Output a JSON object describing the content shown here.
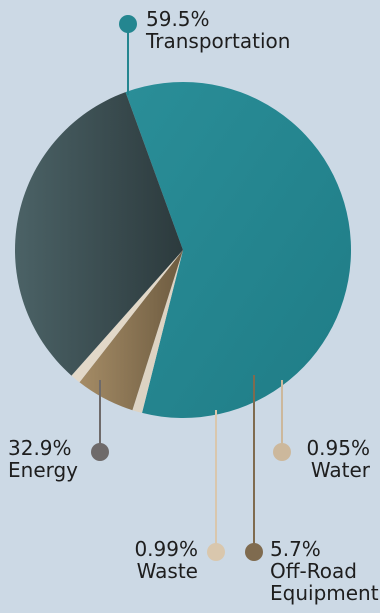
{
  "chart_data": {
    "type": "pie",
    "title": "",
    "slices": [
      {
        "label": "Transportation",
        "value": 59.5,
        "value_label": "59.5%",
        "color": "#248690"
      },
      {
        "label": "Water",
        "value": 0.95,
        "value_label": "0.95%",
        "color": "#ddd3c3"
      },
      {
        "label": "Off-Road Equipment",
        "value": 5.7,
        "value_label": "5.7%",
        "color": "#8a7553"
      },
      {
        "label": "Waste",
        "value": 0.99,
        "value_label": "0.99%",
        "color": "#e2d8c8"
      },
      {
        "label": "Energy",
        "value": 32.9,
        "value_label": "32.9%",
        "color": "#3d4f52"
      }
    ],
    "marker_colors": {
      "Transportation": "#248690",
      "Water": "#ccb89c",
      "Off-Road Equipment": "#7f6b4f",
      "Waste": "#d9c7ad",
      "Energy": "#6e6a6a"
    },
    "legend": "none (callout labels)"
  }
}
